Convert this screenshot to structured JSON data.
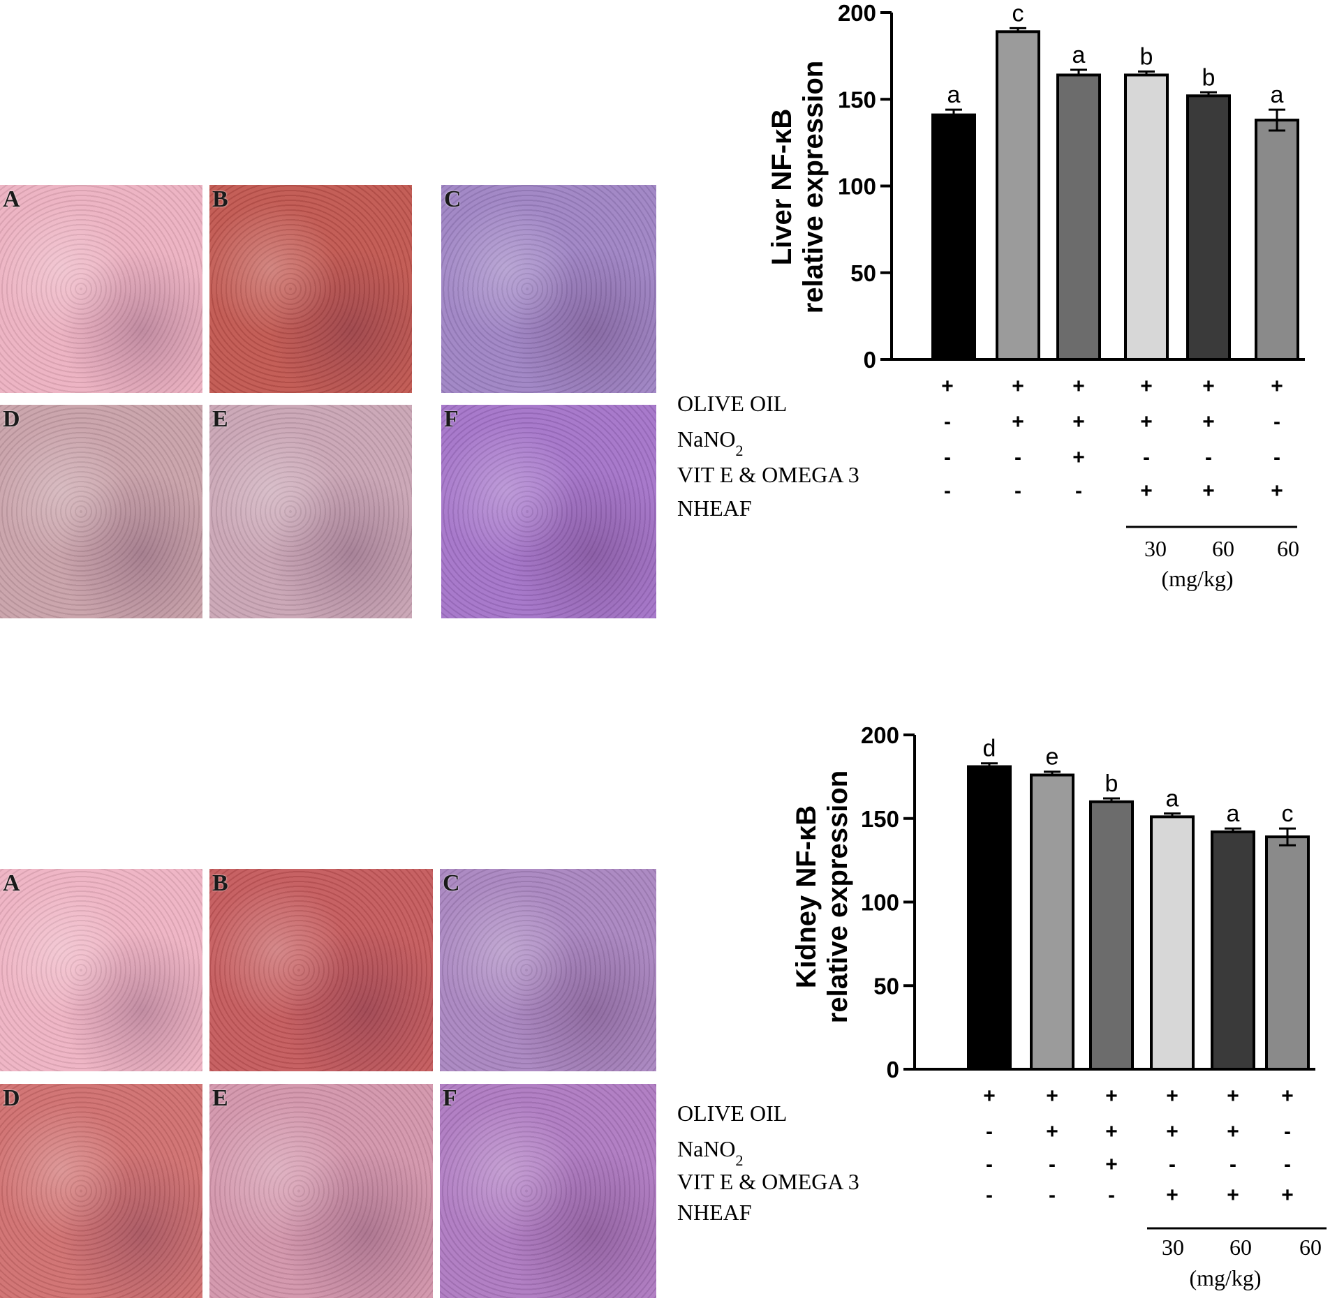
{
  "micrographs": [
    {
      "set": "liver",
      "labels": [
        "A",
        "B",
        "C",
        "D",
        "E",
        "F"
      ],
      "colors": [
        "#ecb0c0",
        "#c0554e",
        "#9d82c3",
        "#c8a0a8",
        "#c9a4b4",
        "#a372c8"
      ]
    },
    {
      "set": "kidney",
      "labels": [
        "A",
        "B",
        "C",
        "D",
        "E",
        "F"
      ],
      "colors": [
        "#eeb2c2",
        "#c4585a",
        "#a884bf",
        "#cf6e6e",
        "#d294aa",
        "#ad78c0"
      ]
    }
  ],
  "chart_data": [
    {
      "type": "bar",
      "title": "",
      "ylabel_line1": "Liver NF-κB",
      "ylabel_line2": "relative expression",
      "ylim": [
        0,
        200
      ],
      "yticks": [
        "0",
        "50",
        "100",
        "150",
        "200"
      ],
      "values": [
        141,
        189,
        164,
        164,
        152,
        138
      ],
      "errors": [
        3,
        2,
        3,
        2,
        2,
        6
      ],
      "significance": [
        "a",
        "c",
        "a",
        "b",
        "b",
        "a"
      ],
      "bar_colors": [
        "#000000",
        "#9b9b9b",
        "#6c6c6c",
        "#d7d7d7",
        "#3a3a3a",
        "#8a8a8a"
      ],
      "treatment_labels": [
        "OLIVE OIL",
        "NaNO2",
        "VIT E & OMEGA 3",
        "NHEAF"
      ],
      "treatment_signs": [
        [
          "+",
          "+",
          "+",
          "+",
          "+",
          "+"
        ],
        [
          "-",
          "+",
          "+",
          "+",
          "+",
          "-"
        ],
        [
          "-",
          "-",
          "+",
          "-",
          "-",
          "-"
        ],
        [
          "-",
          "-",
          "-",
          "+",
          "+",
          "+"
        ]
      ],
      "doses": [
        "30",
        "60",
        "60"
      ],
      "dose_unit": "(mg/kg)"
    },
    {
      "type": "bar",
      "title": "",
      "ylabel_line1": "Kidney NF-κB",
      "ylabel_line2": "relative expression",
      "ylim": [
        0,
        200
      ],
      "yticks": [
        "0",
        "50",
        "100",
        "150",
        "200"
      ],
      "values": [
        181,
        176,
        160,
        151,
        142,
        139
      ],
      "errors": [
        2,
        2,
        2,
        2,
        2,
        5
      ],
      "significance": [
        "d",
        "e",
        "b",
        "a",
        "a",
        "c"
      ],
      "bar_colors": [
        "#000000",
        "#9b9b9b",
        "#6c6c6c",
        "#d7d7d7",
        "#3a3a3a",
        "#8a8a8a"
      ],
      "treatment_labels": [
        "OLIVE OIL",
        "NaNO2",
        "VIT E & OMEGA 3",
        "NHEAF"
      ],
      "treatment_signs": [
        [
          "+",
          "+",
          "+",
          "+",
          "+",
          "+"
        ],
        [
          "-",
          "+",
          "+",
          "+",
          "+",
          "-"
        ],
        [
          "-",
          "-",
          "+",
          "-",
          "-",
          "-"
        ],
        [
          "-",
          "-",
          "-",
          "+",
          "+",
          "+"
        ]
      ],
      "doses": [
        "30",
        "60",
        "60"
      ],
      "dose_unit": "(mg/kg)"
    }
  ]
}
